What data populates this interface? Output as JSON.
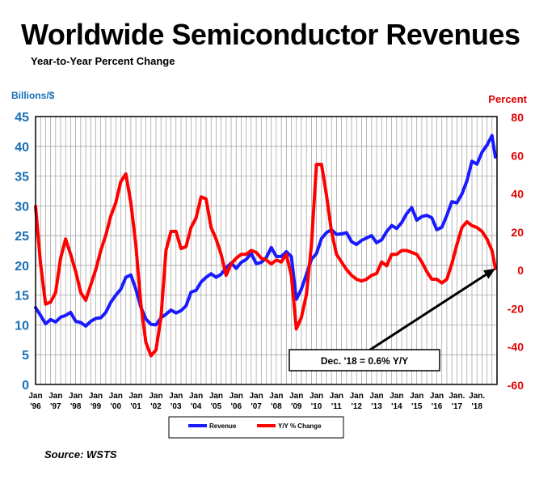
{
  "title": "Worldwide Semiconductor Revenues",
  "subtitle": "Year-to-Year Percent Change",
  "source": "Source: WSTS",
  "colors": {
    "revenue": "#1a1aff",
    "yoy": "#ff0000",
    "grid": "#9a9a9a",
    "left_axis": "#1a6fb5",
    "right_axis": "#e00000"
  },
  "chart_data": {
    "type": "line",
    "left_axis": {
      "label": "Billions/$",
      "min": 0,
      "max": 45,
      "ticks": [
        "0",
        "5",
        "10",
        "15",
        "20",
        "25",
        "30",
        "35",
        "40",
        "45"
      ]
    },
    "right_axis": {
      "label": "Percent",
      "min": -60,
      "max": 80,
      "ticks": [
        "-60",
        "-40",
        "-20",
        "0",
        "20",
        "40",
        "60",
        "80"
      ]
    },
    "x_range": [
      1996.0,
      2019.0
    ],
    "x_ticks": [
      {
        "x": 1996,
        "label": "Jan",
        "year": "'96"
      },
      {
        "x": 1997,
        "label": "Jan",
        "year": "'97"
      },
      {
        "x": 1998,
        "label": "Jan",
        "year": "'98"
      },
      {
        "x": 1999,
        "label": "Jan",
        "year": "'99"
      },
      {
        "x": 2000,
        "label": "Jan",
        "year": "'00"
      },
      {
        "x": 2001,
        "label": "Jan",
        "year": "'01"
      },
      {
        "x": 2002,
        "label": "Jan",
        "year": "'02"
      },
      {
        "x": 2003,
        "label": "Jan",
        "year": "'03"
      },
      {
        "x": 2004,
        "label": "Jan",
        "year": "'04"
      },
      {
        "x": 2005,
        "label": "Jan",
        "year": "'05"
      },
      {
        "x": 2006,
        "label": "Jan",
        "year": "'06"
      },
      {
        "x": 2007,
        "label": "Jan",
        "year": "'07"
      },
      {
        "x": 2008,
        "label": "Jan",
        "year": "'08"
      },
      {
        "x": 2009,
        "label": "Jan",
        "year": "'09"
      },
      {
        "x": 2010,
        "label": "Jan",
        "year": "'10"
      },
      {
        "x": 2011,
        "label": "Jan",
        "year": "'11"
      },
      {
        "x": 2012,
        "label": "Jan",
        "year": "'12"
      },
      {
        "x": 2013,
        "label": "Jan",
        "year": "'13"
      },
      {
        "x": 2014,
        "label": "Jan",
        "year": "'14"
      },
      {
        "x": 2015,
        "label": "Jan",
        "year": "'15"
      },
      {
        "x": 2016,
        "label": "Jan",
        "year": "'16"
      },
      {
        "x": 2017,
        "label": "Jan.",
        "year": "'17"
      },
      {
        "x": 2018,
        "label": "Jan.",
        "year": "'18"
      }
    ],
    "grid": true,
    "legend": {
      "position": "bottom",
      "entries": [
        "Revenue",
        "Y/Y % Change"
      ]
    },
    "annotation": {
      "text": "Dec. '18 = 0.6% Y/Y",
      "points_to": {
        "x": 2018.92,
        "y": 0.6
      }
    },
    "series": [
      {
        "name": "Revenue",
        "axis": "left",
        "points": [
          [
            1996.0,
            12.9
          ],
          [
            1996.25,
            11.6
          ],
          [
            1996.5,
            10.2
          ],
          [
            1996.75,
            10.9
          ],
          [
            1997.0,
            10.5
          ],
          [
            1997.25,
            11.3
          ],
          [
            1997.5,
            11.6
          ],
          [
            1997.75,
            12.1
          ],
          [
            1998.0,
            10.6
          ],
          [
            1998.25,
            10.4
          ],
          [
            1998.5,
            9.8
          ],
          [
            1998.75,
            10.6
          ],
          [
            1999.0,
            11.1
          ],
          [
            1999.25,
            11.2
          ],
          [
            1999.5,
            12.1
          ],
          [
            1999.75,
            13.8
          ],
          [
            2000.0,
            15.0
          ],
          [
            2000.25,
            16.0
          ],
          [
            2000.5,
            18.0
          ],
          [
            2000.75,
            18.4
          ],
          [
            2001.0,
            16.0
          ],
          [
            2001.25,
            13.0
          ],
          [
            2001.5,
            11.0
          ],
          [
            2001.75,
            10.1
          ],
          [
            2002.0,
            10.0
          ],
          [
            2002.25,
            11.2
          ],
          [
            2002.5,
            11.8
          ],
          [
            2002.75,
            12.5
          ],
          [
            2003.0,
            12.0
          ],
          [
            2003.25,
            12.4
          ],
          [
            2003.5,
            13.2
          ],
          [
            2003.75,
            15.5
          ],
          [
            2004.0,
            15.8
          ],
          [
            2004.25,
            17.2
          ],
          [
            2004.5,
            18.0
          ],
          [
            2004.75,
            18.6
          ],
          [
            2005.0,
            18.0
          ],
          [
            2005.25,
            18.5
          ],
          [
            2005.5,
            19.6
          ],
          [
            2005.75,
            20.4
          ],
          [
            2006.0,
            19.5
          ],
          [
            2006.25,
            20.5
          ],
          [
            2006.5,
            21.0
          ],
          [
            2006.75,
            22.0
          ],
          [
            2007.0,
            20.3
          ],
          [
            2007.25,
            20.5
          ],
          [
            2007.5,
            21.3
          ],
          [
            2007.75,
            23.0
          ],
          [
            2008.0,
            21.5
          ],
          [
            2008.25,
            21.5
          ],
          [
            2008.5,
            22.3
          ],
          [
            2008.75,
            21.5
          ],
          [
            2009.0,
            14.3
          ],
          [
            2009.25,
            16.0
          ],
          [
            2009.5,
            18.5
          ],
          [
            2009.75,
            21.0
          ],
          [
            2010.0,
            22.0
          ],
          [
            2010.25,
            24.5
          ],
          [
            2010.5,
            25.5
          ],
          [
            2010.75,
            26.0
          ],
          [
            2011.0,
            25.2
          ],
          [
            2011.25,
            25.3
          ],
          [
            2011.5,
            25.5
          ],
          [
            2011.75,
            24.0
          ],
          [
            2012.0,
            23.5
          ],
          [
            2012.25,
            24.2
          ],
          [
            2012.5,
            24.6
          ],
          [
            2012.75,
            25.0
          ],
          [
            2013.0,
            23.8
          ],
          [
            2013.25,
            24.3
          ],
          [
            2013.5,
            25.7
          ],
          [
            2013.75,
            26.7
          ],
          [
            2014.0,
            26.2
          ],
          [
            2014.25,
            27.2
          ],
          [
            2014.5,
            28.7
          ],
          [
            2014.75,
            29.7
          ],
          [
            2015.0,
            27.6
          ],
          [
            2015.25,
            28.2
          ],
          [
            2015.5,
            28.4
          ],
          [
            2015.75,
            28.0
          ],
          [
            2016.0,
            26.0
          ],
          [
            2016.25,
            26.4
          ],
          [
            2016.5,
            28.4
          ],
          [
            2016.75,
            30.7
          ],
          [
            2017.0,
            30.5
          ],
          [
            2017.25,
            32.0
          ],
          [
            2017.5,
            34.2
          ],
          [
            2017.75,
            37.5
          ],
          [
            2018.0,
            37.0
          ],
          [
            2018.25,
            39.0
          ],
          [
            2018.5,
            40.2
          ],
          [
            2018.75,
            41.8
          ],
          [
            2018.92,
            38.2
          ]
        ]
      },
      {
        "name": "Y/Y % Change",
        "axis": "right",
        "points": [
          [
            1996.0,
            33
          ],
          [
            1996.25,
            3
          ],
          [
            1996.5,
            -18
          ],
          [
            1996.75,
            -17
          ],
          [
            1997.0,
            -12
          ],
          [
            1997.25,
            6
          ],
          [
            1997.5,
            16
          ],
          [
            1997.75,
            8
          ],
          [
            1998.0,
            -1
          ],
          [
            1998.25,
            -12
          ],
          [
            1998.5,
            -16
          ],
          [
            1998.75,
            -8
          ],
          [
            1999.0,
            0
          ],
          [
            1999.25,
            10
          ],
          [
            1999.5,
            18
          ],
          [
            1999.75,
            28
          ],
          [
            2000.0,
            35
          ],
          [
            2000.25,
            46
          ],
          [
            2000.5,
            50
          ],
          [
            2000.75,
            35
          ],
          [
            2001.0,
            13
          ],
          [
            2001.25,
            -18
          ],
          [
            2001.5,
            -38
          ],
          [
            2001.75,
            -45
          ],
          [
            2002.0,
            -42
          ],
          [
            2002.25,
            -25
          ],
          [
            2002.5,
            10
          ],
          [
            2002.75,
            20
          ],
          [
            2003.0,
            20
          ],
          [
            2003.25,
            11
          ],
          [
            2003.5,
            12
          ],
          [
            2003.75,
            22
          ],
          [
            2004.0,
            27
          ],
          [
            2004.25,
            38
          ],
          [
            2004.5,
            37
          ],
          [
            2004.75,
            22
          ],
          [
            2005.0,
            16
          ],
          [
            2005.25,
            8
          ],
          [
            2005.5,
            -3
          ],
          [
            2005.75,
            3
          ],
          [
            2006.0,
            6
          ],
          [
            2006.25,
            8
          ],
          [
            2006.5,
            8
          ],
          [
            2006.75,
            10
          ],
          [
            2007.0,
            9
          ],
          [
            2007.25,
            6
          ],
          [
            2007.5,
            5
          ],
          [
            2007.75,
            3
          ],
          [
            2008.0,
            5
          ],
          [
            2008.25,
            4
          ],
          [
            2008.5,
            8
          ],
          [
            2008.75,
            -3
          ],
          [
            2009.0,
            -31
          ],
          [
            2009.25,
            -25
          ],
          [
            2009.5,
            -13
          ],
          [
            2009.75,
            13
          ],
          [
            2010.0,
            55
          ],
          [
            2010.25,
            55
          ],
          [
            2010.5,
            39
          ],
          [
            2010.75,
            20
          ],
          [
            2011.0,
            8
          ],
          [
            2011.25,
            4
          ],
          [
            2011.5,
            0
          ],
          [
            2011.75,
            -3
          ],
          [
            2012.0,
            -5
          ],
          [
            2012.25,
            -6
          ],
          [
            2012.5,
            -5
          ],
          [
            2012.75,
            -3
          ],
          [
            2013.0,
            -2
          ],
          [
            2013.25,
            4
          ],
          [
            2013.5,
            2
          ],
          [
            2013.75,
            8
          ],
          [
            2014.0,
            8
          ],
          [
            2014.25,
            10
          ],
          [
            2014.5,
            10
          ],
          [
            2014.75,
            9
          ],
          [
            2015.0,
            8
          ],
          [
            2015.25,
            4
          ],
          [
            2015.5,
            -1
          ],
          [
            2015.75,
            -5
          ],
          [
            2016.0,
            -5
          ],
          [
            2016.25,
            -7
          ],
          [
            2016.5,
            -5
          ],
          [
            2016.75,
            3
          ],
          [
            2017.0,
            13
          ],
          [
            2017.25,
            22
          ],
          [
            2017.5,
            25
          ],
          [
            2017.75,
            23
          ],
          [
            2018.0,
            22
          ],
          [
            2018.25,
            20
          ],
          [
            2018.5,
            16
          ],
          [
            2018.75,
            10
          ],
          [
            2018.92,
            0.6
          ]
        ]
      }
    ]
  }
}
